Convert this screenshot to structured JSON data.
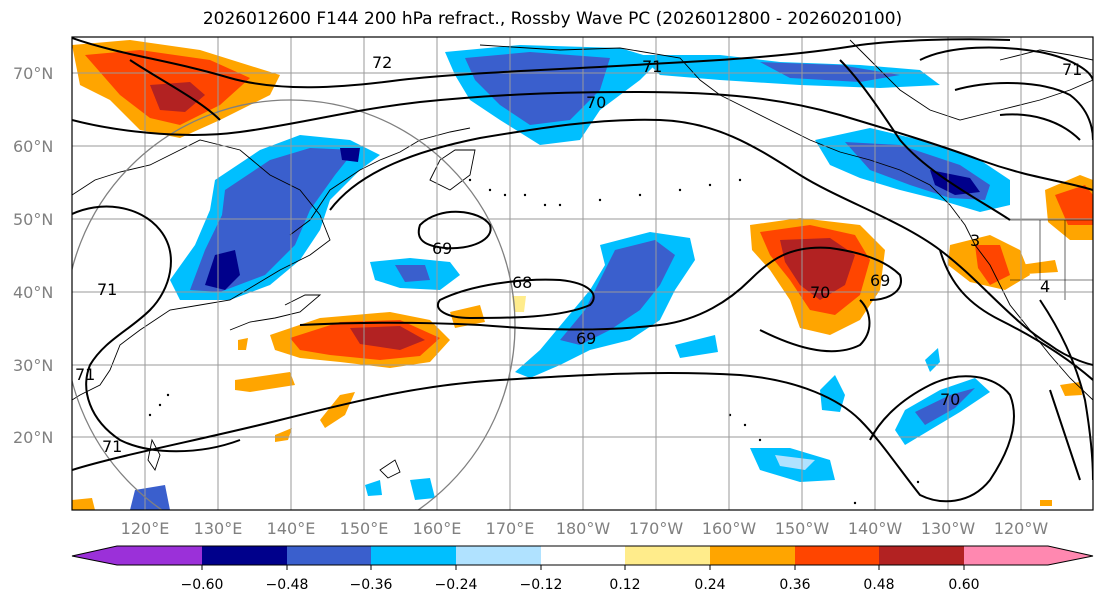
{
  "title": "2026012600 F144 200 hPa refract., Rossby Wave PC (2026012800 - 2026020100)",
  "map": {
    "lat_labels": [
      "70°N",
      "60°N",
      "50°N",
      "40°N",
      "30°N",
      "20°N"
    ],
    "lon_labels": [
      "120°E",
      "130°E",
      "140°E",
      "150°E",
      "160°E",
      "170°E",
      "180°W",
      "170°W",
      "160°W",
      "150°W",
      "140°W",
      "130°W",
      "120°W"
    ],
    "contour_labels": [
      "72",
      "71",
      "70",
      "69",
      "68",
      "69",
      "70",
      "69",
      "71",
      "71",
      "71",
      "70",
      "3",
      "4",
      "71"
    ]
  },
  "colorbar": {
    "ticks": [
      "−0.60",
      "−0.48",
      "−0.36",
      "−0.24",
      "−0.12",
      "0.12",
      "0.24",
      "0.36",
      "0.48",
      "0.60"
    ],
    "colors": [
      "#9b30d9",
      "#00008b",
      "#3a5fcd",
      "#00bfff",
      "#b0e2ff",
      "#ffffff",
      "#ffec8b",
      "#ffa500",
      "#ff4500",
      "#b22222",
      "#ff88b0"
    ]
  },
  "colors": {
    "orange": "#ffa500",
    "red_orange": "#ff4500",
    "dark_red": "#b22222",
    "deep_sky": "#00bfff",
    "light_blue": "#b0e2ff",
    "royal_blue": "#3a5fcd",
    "navy": "#00008b",
    "yellow": "#ffec8b"
  }
}
